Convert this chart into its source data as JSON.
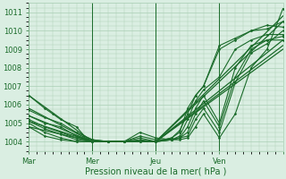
{
  "xlabel": "Pression niveau de la mer( hPa )",
  "ylim": [
    1003.5,
    1011.5
  ],
  "yticks": [
    1004,
    1005,
    1006,
    1007,
    1008,
    1009,
    1010,
    1011
  ],
  "xlim": [
    0,
    96
  ],
  "xtick_positions": [
    0,
    24,
    48,
    72,
    96
  ],
  "xtick_labels": [
    "Mar",
    "Mer",
    "Jeu",
    "Ven",
    ""
  ],
  "bg_color": "#daeee2",
  "grid_color": "#aacfb5",
  "line_color": "#1a6b2a",
  "series": [
    {
      "x": [
        0,
        6,
        9,
        12,
        15,
        18,
        21,
        24,
        30,
        36,
        42,
        48,
        54,
        57,
        60,
        63,
        66,
        72,
        78,
        84,
        90,
        96
      ],
      "y": [
        1006.5,
        1005.8,
        1005.5,
        1005.2,
        1005.0,
        1004.8,
        1004.3,
        1004.1,
        1004.0,
        1004.0,
        1004.0,
        1004.0,
        1004.2,
        1004.5,
        1005.8,
        1006.5,
        1007.0,
        1009.0,
        1009.5,
        1010.0,
        1010.3,
        1010.2
      ],
      "style": "solid",
      "marker": true,
      "lw": 0.8
    },
    {
      "x": [
        0,
        6,
        12,
        18,
        24,
        30,
        36,
        42,
        48,
        54,
        57,
        60,
        63,
        66,
        72,
        78,
        84,
        90,
        96
      ],
      "y": [
        1005.7,
        1005.3,
        1005.0,
        1004.5,
        1004.1,
        1004.0,
        1004.0,
        1004.0,
        1004.0,
        1004.2,
        1004.6,
        1005.5,
        1006.5,
        1007.0,
        1009.2,
        1009.6,
        1010.0,
        1010.1,
        1010.5
      ],
      "style": "solid",
      "marker": true,
      "lw": 0.8
    },
    {
      "x": [
        0,
        6,
        12,
        18,
        24,
        30,
        36,
        42,
        48,
        54,
        57,
        60,
        63,
        66,
        72,
        78,
        84,
        90,
        96
      ],
      "y": [
        1005.4,
        1005.0,
        1004.8,
        1004.3,
        1004.0,
        1004.0,
        1004.0,
        1004.0,
        1004.0,
        1004.1,
        1004.3,
        1005.2,
        1006.2,
        1006.8,
        1007.5,
        1009.0,
        1009.5,
        1009.8,
        1009.8
      ],
      "style": "solid",
      "marker": true,
      "lw": 0.8
    },
    {
      "x": [
        0,
        6,
        12,
        18,
        24,
        30,
        36,
        42,
        48,
        54,
        57,
        60,
        63,
        66,
        72,
        78,
        84,
        90,
        96
      ],
      "y": [
        1005.2,
        1004.8,
        1004.5,
        1004.2,
        1004.0,
        1004.0,
        1004.0,
        1004.1,
        1004.0,
        1004.1,
        1004.2,
        1004.8,
        1005.8,
        1006.5,
        1005.0,
        1008.0,
        1009.2,
        1009.5,
        1009.5
      ],
      "style": "solid",
      "marker": true,
      "lw": 0.8
    },
    {
      "x": [
        0,
        6,
        12,
        18,
        24,
        30,
        36,
        42,
        48,
        54,
        57,
        60,
        63,
        66,
        72,
        78,
        84,
        90,
        96
      ],
      "y": [
        1005.1,
        1004.7,
        1004.4,
        1004.1,
        1004.0,
        1004.0,
        1004.0,
        1004.2,
        1004.0,
        1004.1,
        1004.2,
        1004.5,
        1005.5,
        1006.2,
        1004.8,
        1007.5,
        1009.0,
        1009.5,
        1009.7
      ],
      "style": "solid",
      "marker": true,
      "lw": 0.8
    },
    {
      "x": [
        0,
        6,
        12,
        18,
        24,
        30,
        36,
        42,
        48,
        54,
        57,
        60,
        63,
        66,
        72,
        78,
        84,
        90,
        96
      ],
      "y": [
        1005.0,
        1004.5,
        1004.2,
        1004.0,
        1004.0,
        1004.0,
        1004.0,
        1004.3,
        1004.1,
        1004.1,
        1004.2,
        1004.3,
        1005.2,
        1005.8,
        1004.5,
        1007.2,
        1008.8,
        1009.3,
        1010.0
      ],
      "style": "solid",
      "marker": true,
      "lw": 0.8
    },
    {
      "x": [
        0,
        6,
        12,
        18,
        24,
        30,
        36,
        42,
        48,
        54,
        57,
        60,
        63,
        66,
        72,
        78,
        84,
        90,
        96
      ],
      "y": [
        1004.8,
        1004.3,
        1004.1,
        1004.0,
        1004.0,
        1004.0,
        1004.0,
        1004.5,
        1004.2,
        1004.1,
        1004.1,
        1004.2,
        1004.8,
        1005.5,
        1004.2,
        1005.5,
        1008.0,
        1009.0,
        1011.2
      ],
      "style": "solid",
      "marker": true,
      "lw": 0.8
    },
    {
      "x": [
        0,
        24,
        48,
        96
      ],
      "y": [
        1006.5,
        1004.0,
        1004.0,
        1010.8
      ],
      "style": "solid",
      "marker": false,
      "lw": 0.9
    },
    {
      "x": [
        0,
        24,
        48,
        96
      ],
      "y": [
        1005.8,
        1004.0,
        1004.0,
        1009.5
      ],
      "style": "solid",
      "marker": false,
      "lw": 0.9
    },
    {
      "x": [
        0,
        24,
        48,
        96
      ],
      "y": [
        1005.4,
        1004.0,
        1004.0,
        1009.2
      ],
      "style": "solid",
      "marker": false,
      "lw": 0.9
    },
    {
      "x": [
        0,
        24,
        48,
        96
      ],
      "y": [
        1005.1,
        1004.0,
        1004.0,
        1009.0
      ],
      "style": "solid",
      "marker": false,
      "lw": 0.9
    },
    {
      "x": [
        0,
        24,
        48,
        96
      ],
      "y": [
        1004.8,
        1004.0,
        1004.0,
        1010.5
      ],
      "style": "solid",
      "marker": false,
      "lw": 0.9
    }
  ],
  "vline_positions": [
    0,
    24,
    48,
    72,
    96
  ]
}
